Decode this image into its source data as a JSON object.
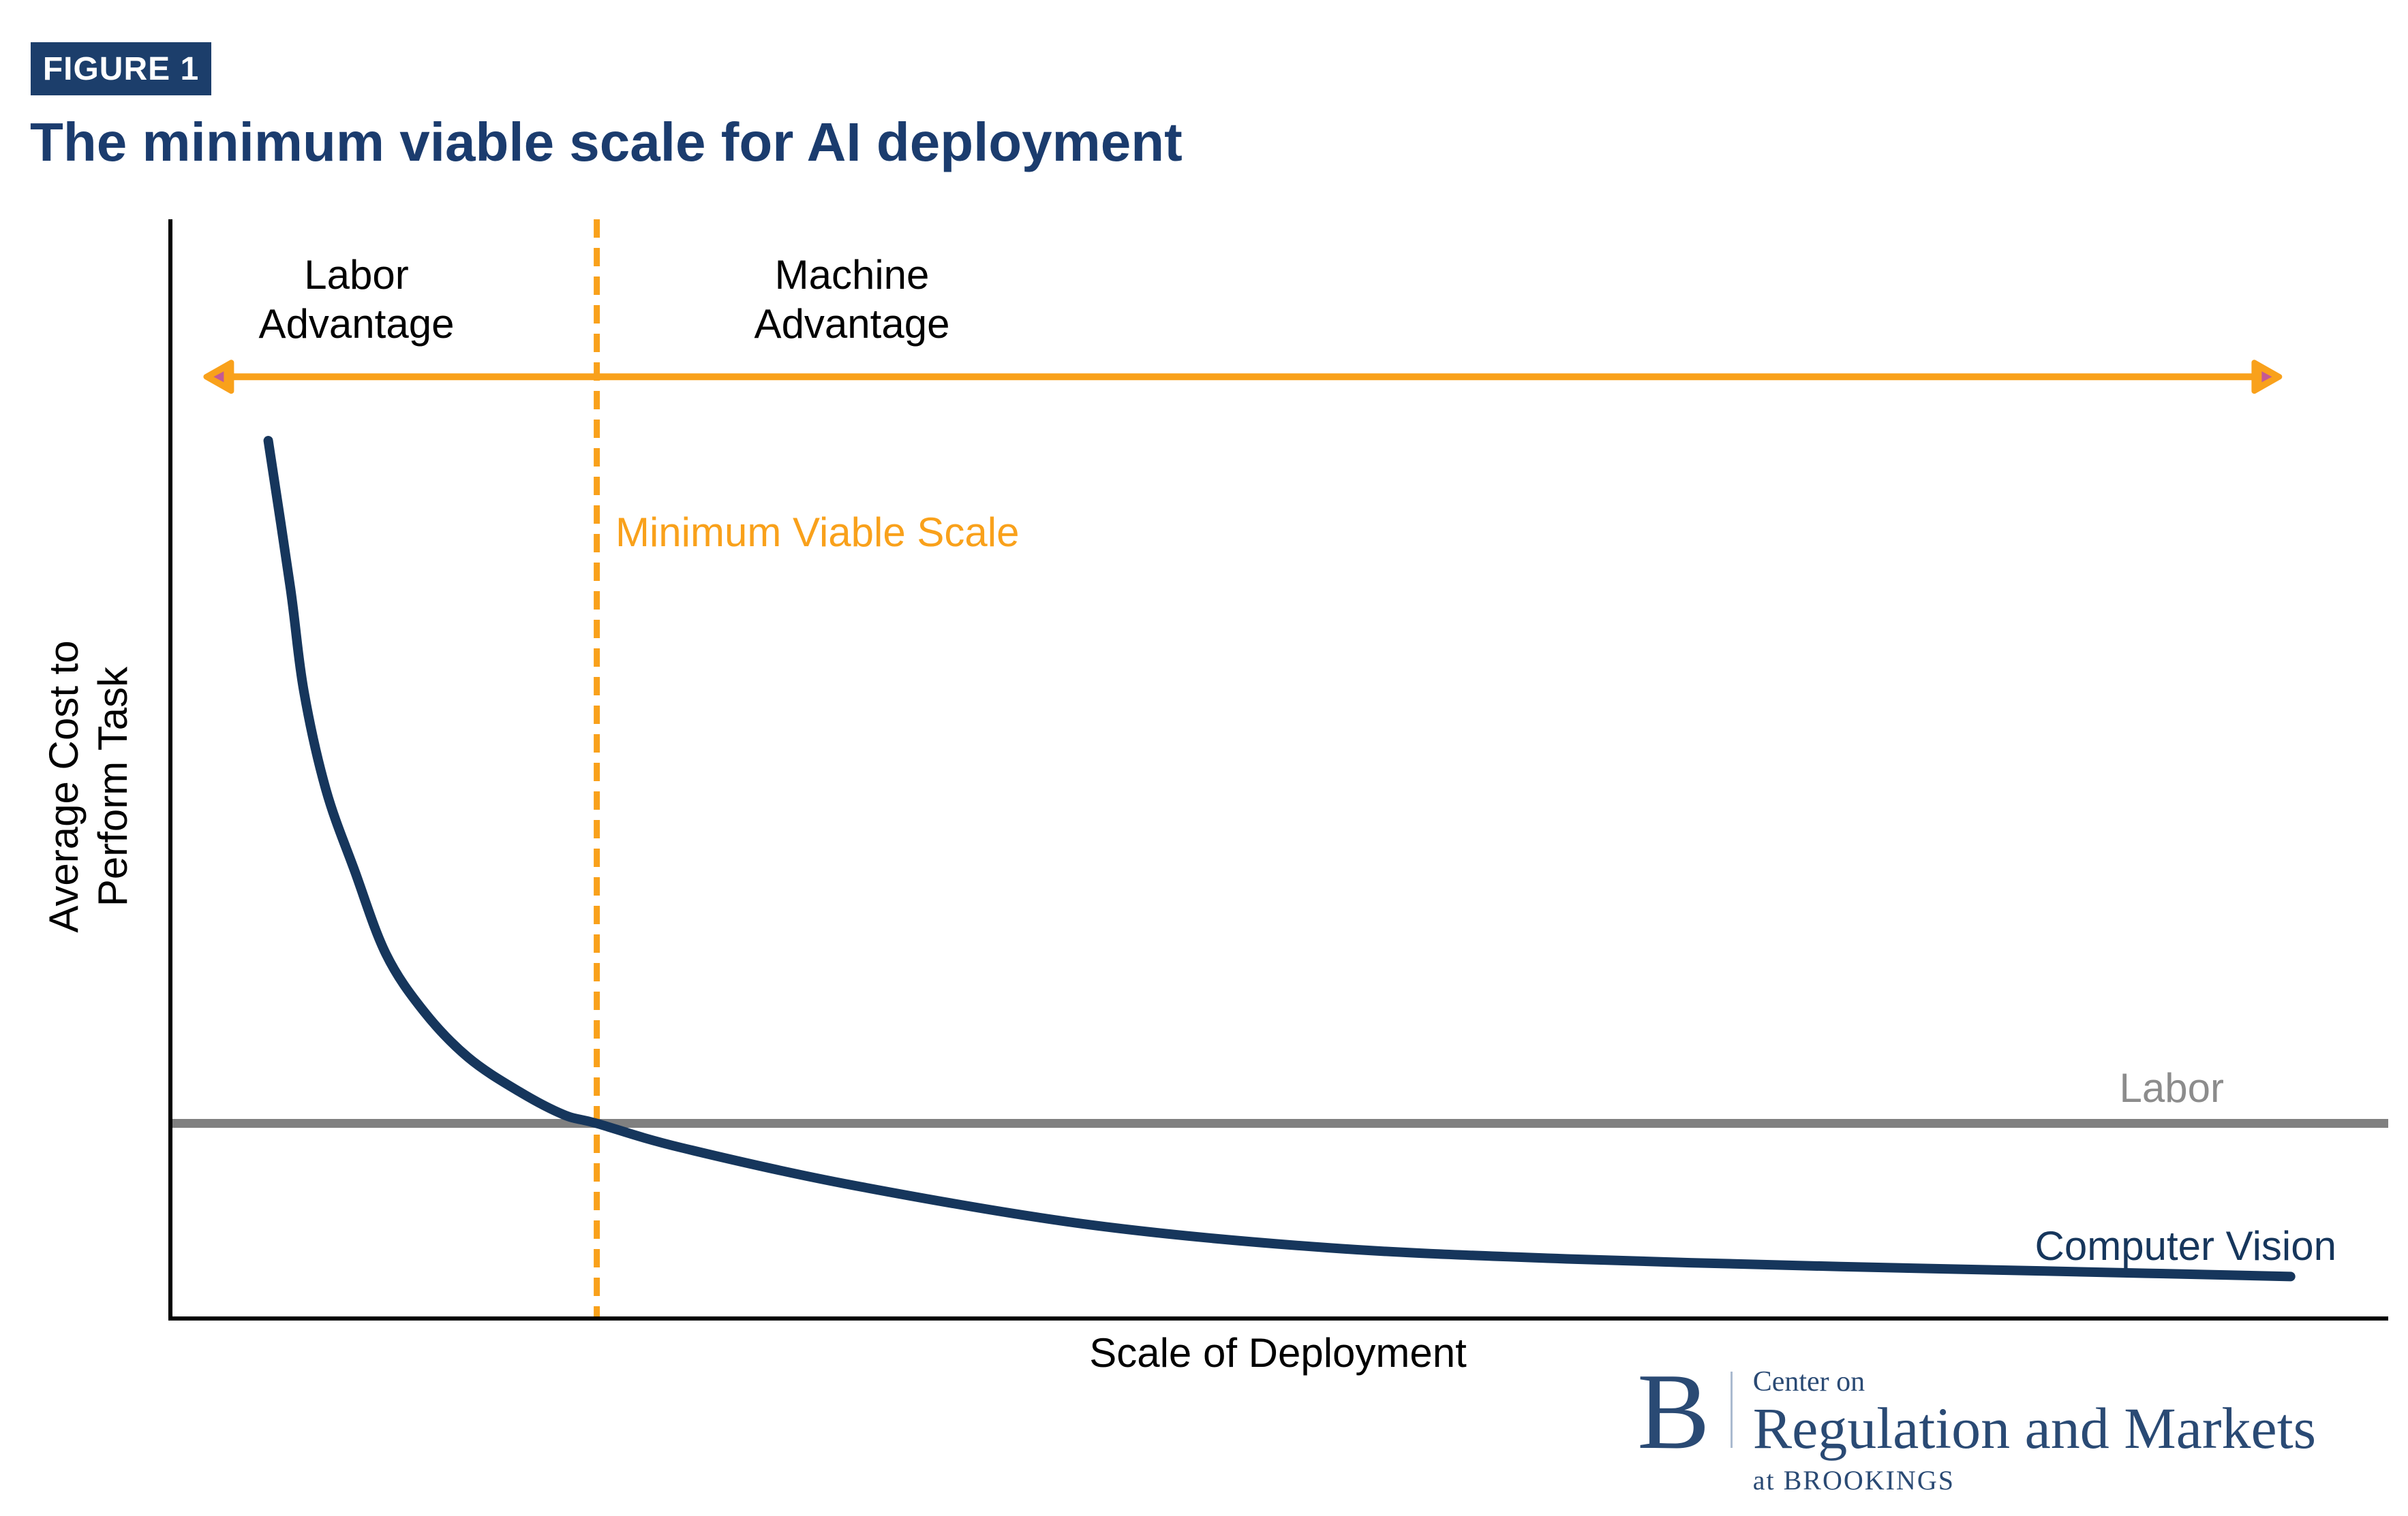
{
  "figure": {
    "tag": "FIGURE 1",
    "title": "The minimum viable scale for AI deployment"
  },
  "colors": {
    "navy_dark": "#1B3C6E",
    "curve_navy": "#16365C",
    "logo_navy": "#2A4A74",
    "orange": "#F9A11B",
    "arrow_tip_inner_pink": "#C45A94",
    "labor_gray": "#808080",
    "labor_label_gray": "#8C8C8C",
    "axis_black": "#000000"
  },
  "chart_data": {
    "type": "line",
    "title": "The minimum viable scale for AI deployment",
    "xlabel": "Scale of Deployment",
    "ylabel": "Average Cost to Perform Task",
    "ylabel_lines": "Average Cost to\nPerform Task",
    "x_axis": {
      "min_pct": 0,
      "max_pct": 100,
      "ticks": "none"
    },
    "y_axis": {
      "min_pct": 0,
      "max_pct": 100,
      "ticks": "none"
    },
    "grid": false,
    "legend": "inline-labels",
    "series": [
      {
        "name": "Computer Vision",
        "color": "#16365C",
        "stroke_width": 14,
        "points_pct": [
          [
            4.5,
            79.9
          ],
          [
            5.5,
            66.5
          ],
          [
            6.1,
            57.2
          ],
          [
            7.1,
            48.2
          ],
          [
            8.4,
            40.8
          ],
          [
            9.8,
            33.3
          ],
          [
            11.5,
            28.1
          ],
          [
            13.5,
            23.9
          ],
          [
            15.8,
            20.8
          ],
          [
            17.8,
            18.7
          ],
          [
            19.3,
            17.9
          ],
          [
            23.1,
            15.7
          ],
          [
            30.8,
            12.3
          ],
          [
            41.5,
            8.7
          ],
          [
            52.3,
            6.6
          ],
          [
            63.0,
            5.6
          ],
          [
            75.3,
            4.9
          ],
          [
            84.5,
            4.5
          ],
          [
            95.6,
            4.0
          ]
        ]
      }
    ],
    "labor_line": {
      "label": "Labor",
      "orientation": "horizontal",
      "y_pct": 17.9,
      "x_from_pct": 0,
      "x_to_pct": 100,
      "color": "#808080",
      "stroke_width": 13
    },
    "mvs_line": {
      "label": "Minimum Viable Scale",
      "orientation": "vertical",
      "x_pct": 19.3,
      "color": "#F9A11B",
      "style": "dashed",
      "stroke_width": 9,
      "dash": "27 15"
    },
    "region_arrow": {
      "y_from_top_pct": 14.3,
      "x_from_pct": 1.7,
      "x_to_pct": 95.1,
      "color": "#F9A11B",
      "tip_inner_color": "#C45A94",
      "stroke_width": 10,
      "left_label": "Labor\nAdvantage",
      "right_label": "Machine\nAdvantage"
    }
  },
  "logo": {
    "initial": "B",
    "line1": "Center on",
    "line2": "Regulation and Markets",
    "line3": "at BROOKINGS"
  }
}
